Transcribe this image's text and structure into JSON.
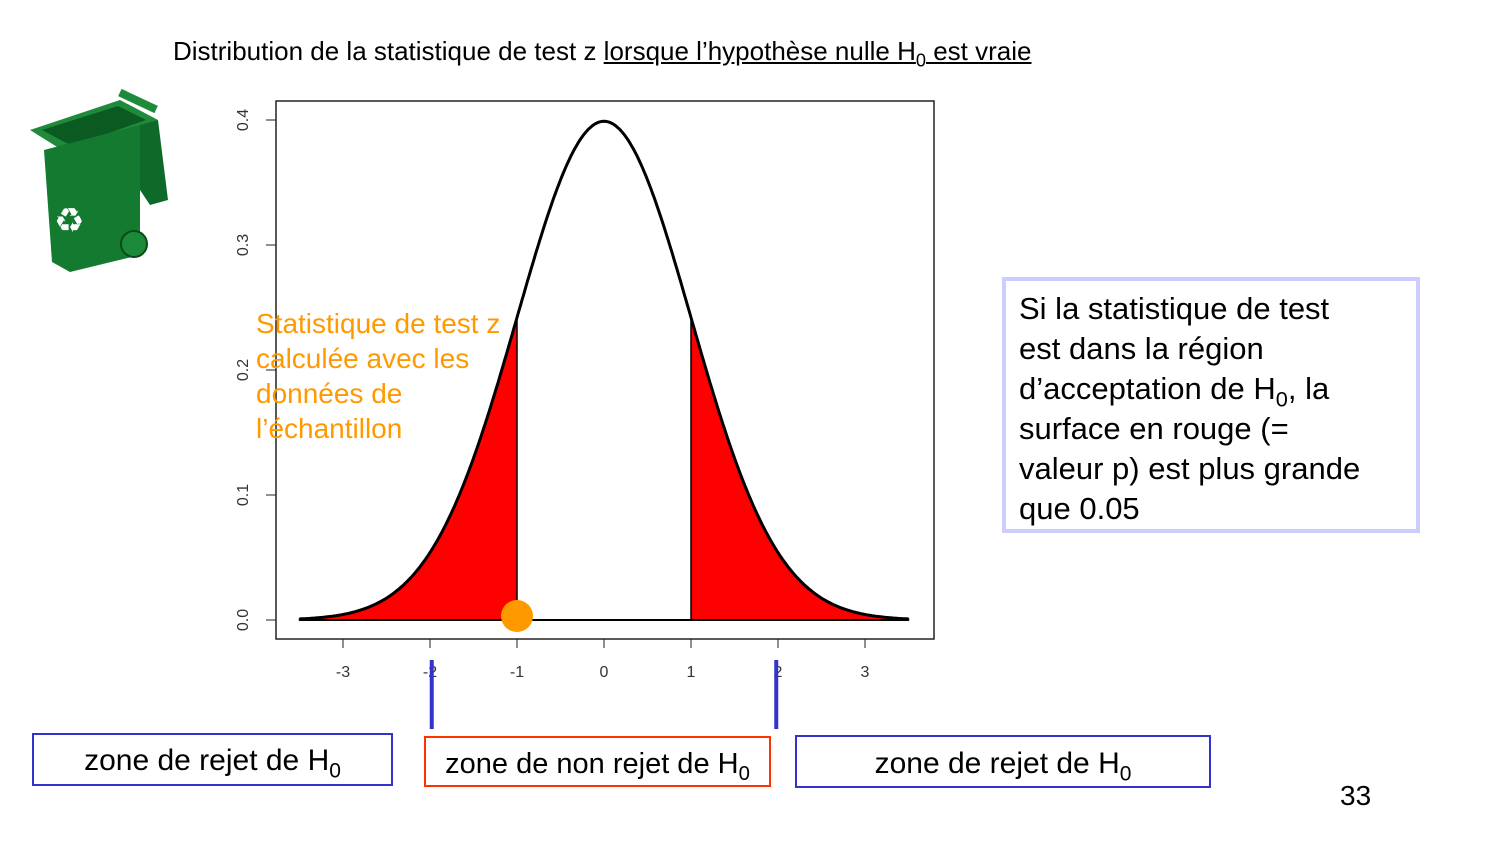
{
  "title": {
    "prefix": "Distribution de la statistique de test z ",
    "underlined": "lorsque l’hypothèse nulle H",
    "sub": "0",
    "underlined_end": " est vraie"
  },
  "annotation": {
    "lines": [
      "Statistique de test z",
      "calculée avec les",
      "données de",
      "l’échantillon"
    ],
    "color": "#ff9900"
  },
  "info_box": {
    "line1": "Si la statistique de test",
    "line2": "est dans la région",
    "line3a": "d’acceptation de H",
    "line3sub": "0",
    "line3b": ", la",
    "line4": "surface en rouge (=",
    "line5": "valeur p) est plus grande",
    "line6": "que 0.05"
  },
  "zones": {
    "left": {
      "label": "zone de rejet de H",
      "sub": "0"
    },
    "middle": {
      "label": "zone de non rejet de H",
      "sub": "0"
    },
    "right": {
      "label": "zone de rejet de H",
      "sub": "0"
    }
  },
  "page_number": "33",
  "icon": "recycling-bin-icon",
  "chart_data": {
    "type": "area",
    "curve": "standard normal density",
    "x_range": [
      -3.5,
      3.5
    ],
    "xlim": [
      -3.75,
      3.8
    ],
    "ylim": [
      -0.015,
      0.415
    ],
    "x_ticks": [
      -3,
      -2,
      -1,
      0,
      1,
      2,
      3
    ],
    "x_tick_labels": [
      "-3",
      "-2",
      "-1",
      "0",
      "1",
      "2",
      "3"
    ],
    "y_ticks": [
      0.0,
      0.1,
      0.2,
      0.3,
      0.4
    ],
    "y_tick_labels": [
      "0.0",
      "0.1",
      "0.2",
      "0.3",
      "0.4"
    ],
    "shaded_regions": [
      [
        -3.5,
        -1
      ],
      [
        1,
        3.5
      ]
    ],
    "shade_color": "#ff0000",
    "observed_z": -1,
    "observed_color": "#ff9900",
    "critical_values": [
      -1.98,
      1.98
    ],
    "critical_color": "#3333cc",
    "grid": false
  }
}
